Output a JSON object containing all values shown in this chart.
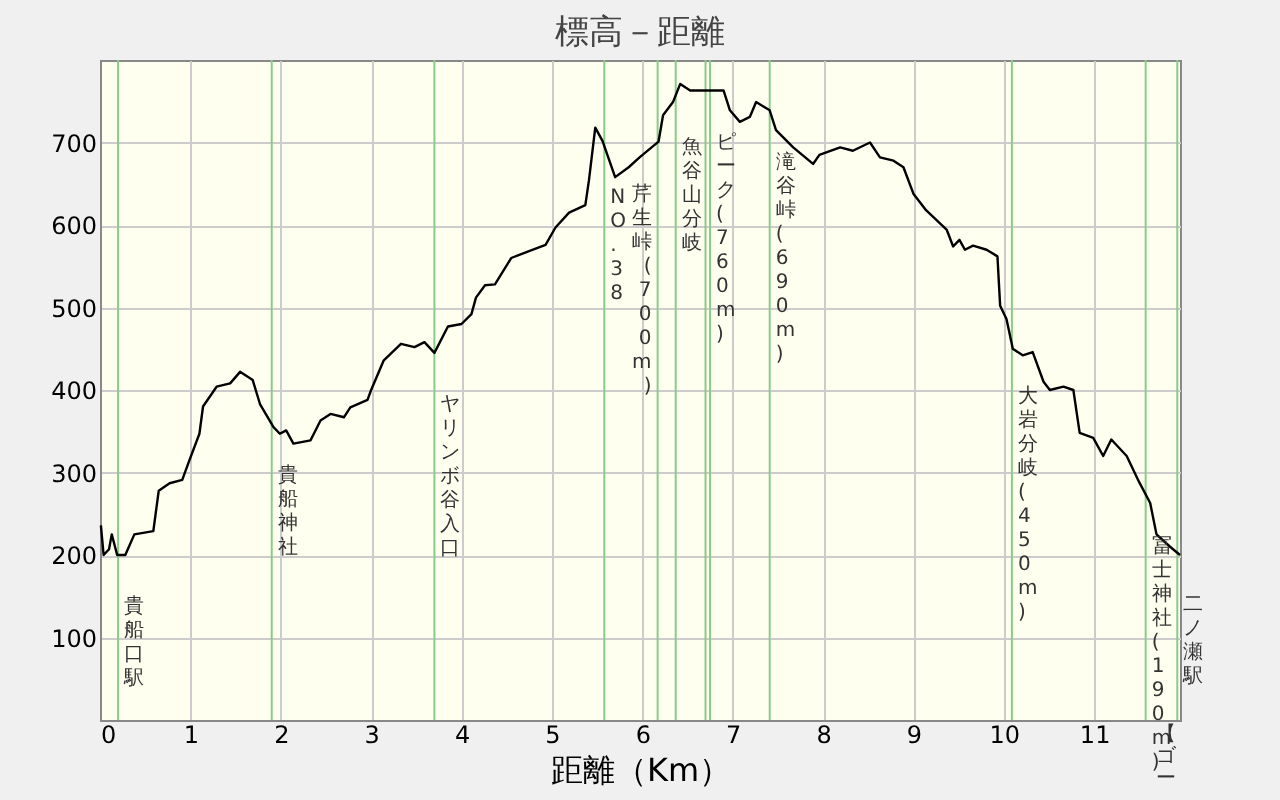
{
  "chart_data": {
    "type": "line",
    "title": "標高－距離",
    "xlabel": "距離（Km）",
    "xlim": [
      0,
      11.95
    ],
    "xticks": [
      0,
      1,
      2,
      3,
      4,
      5,
      6,
      7,
      8,
      9,
      10,
      11
    ],
    "ylim": [
      0,
      800
    ],
    "yticks": [
      100,
      200,
      300,
      400,
      500,
      600,
      700
    ],
    "grid": true,
    "series": [
      {
        "color": "#000000",
        "x": [
          0.01,
          0.04,
          0.1,
          0.13,
          0.19,
          0.28,
          0.38,
          0.59,
          0.65,
          0.77,
          0.91,
          0.99,
          1.1,
          1.14,
          1.29,
          1.44,
          1.55,
          1.69,
          1.77,
          1.92,
          1.99,
          2.06,
          2.14,
          2.33,
          2.44,
          2.55,
          2.7,
          2.77,
          2.96,
          3.0,
          3.14,
          3.33,
          3.48,
          3.59,
          3.7,
          3.85,
          4.0,
          4.11,
          4.16,
          4.26,
          4.37,
          4.55,
          4.74,
          4.93,
          5.04,
          5.19,
          5.37,
          5.41,
          5.48,
          5.56,
          5.7,
          5.85,
          5.97,
          6.18,
          6.23,
          6.34,
          6.42,
          6.53,
          6.7,
          6.9,
          6.97,
          7.08,
          7.19,
          7.26,
          7.41,
          7.48,
          7.67,
          7.89,
          7.96,
          8.19,
          8.33,
          8.52,
          8.63,
          8.78,
          8.89,
          9.0,
          9.14,
          9.37,
          9.44,
          9.51,
          9.57,
          9.66,
          9.81,
          9.93,
          9.96,
          10.03,
          10.1,
          10.21,
          10.32,
          10.44,
          10.51,
          10.66,
          10.77,
          10.84,
          10.99,
          11.1,
          11.19,
          11.36,
          11.5,
          11.62,
          11.69,
          11.84,
          11.95
        ],
        "values": [
          236,
          200,
          207,
          225,
          200,
          200,
          225,
          229,
          278,
          287,
          291,
          315,
          347,
          380,
          404,
          408,
          422,
          412,
          383,
          355,
          347,
          351,
          335,
          339,
          363,
          371,
          367,
          379,
          388,
          400,
          436,
          456,
          452,
          458,
          445,
          477,
          480,
          492,
          512,
          527,
          528,
          560,
          568,
          576,
          597,
          615,
          624,
          654,
          718,
          702,
          658,
          670,
          682,
          701,
          733,
          749,
          771,
          763,
          763,
          763,
          739,
          725,
          731,
          749,
          739,
          715,
          694,
          674,
          685,
          694,
          690,
          700,
          682,
          678,
          670,
          638,
          618,
          594,
          574,
          582,
          570,
          575,
          570,
          562,
          502,
          486,
          450,
          442,
          446,
          410,
          400,
          404,
          400,
          348,
          342,
          320,
          340,
          320,
          288,
          263,
          225,
          210,
          200
        ]
      }
    ],
    "ref_lines": [
      {
        "axis": "x",
        "value": 0.2,
        "label": "貴船口駅",
        "color": "#88cc88"
      },
      {
        "axis": "x",
        "value": 1.9,
        "label": "貴船神社",
        "color": "#88cc88"
      },
      {
        "axis": "x",
        "value": 3.7,
        "label": "ヤリンボ谷入口",
        "color": "#88cc88"
      },
      {
        "axis": "x",
        "value": 5.58,
        "label": "NO.38",
        "color": "#88cc88"
      },
      {
        "axis": "x",
        "value": 6.17,
        "label": "芹生峠(700m)",
        "color": "#88cc88"
      },
      {
        "axis": "x",
        "value": 6.37,
        "label": "魚谷山分岐",
        "color": "#88cc88"
      },
      {
        "axis": "x",
        "value": 6.7,
        "label": null,
        "color": "#88cc88"
      },
      {
        "axis": "x",
        "value": 6.75,
        "label": "ピーク(760m)",
        "color": "#88cc88"
      },
      {
        "axis": "x",
        "value": 7.41,
        "label": "滝谷峠(690m)",
        "color": "#88cc88"
      },
      {
        "axis": "x",
        "value": 10.09,
        "label": "大岩分岐(450m)",
        "color": "#88cc88"
      },
      {
        "axis": "x",
        "value": 11.57,
        "label": "冨士神社(190m)",
        "color": "#88cc88"
      },
      {
        "axis": "x",
        "value": 11.92,
        "label": "二ノ瀬駅",
        "color": "#88cc88"
      }
    ],
    "annotations": [
      "【ゴー"
    ]
  }
}
